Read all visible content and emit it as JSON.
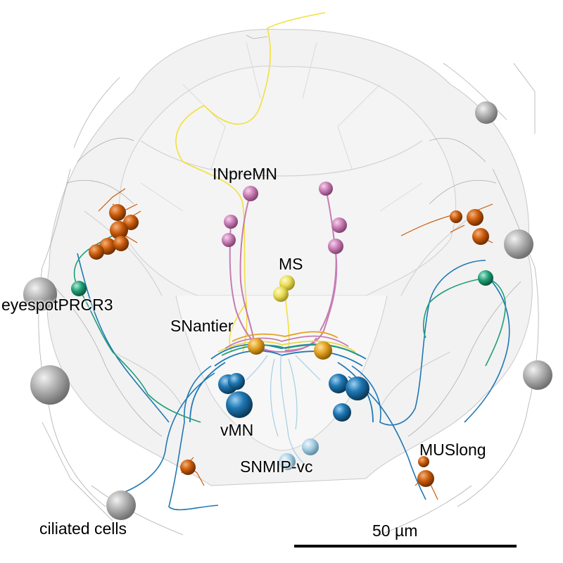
{
  "figure": {
    "labels": {
      "inpremn": "INpreMN",
      "ms": "MS",
      "eyespot": "eyespotPRCR3",
      "snantier": "SNantier",
      "vmn": "vMN",
      "snmip": "SNMIP-vc",
      "muslong": "MUSlong",
      "ciliated": "ciliated cells"
    },
    "scalebar": {
      "label": "50 µm"
    },
    "colors": {
      "outline": "#d8d8d8",
      "ciliated": "#a0a0a0",
      "inpremn": "#c77cb4",
      "ms": "#e6d84a",
      "snantier": "#e2a323",
      "vmn": "#1f78b4",
      "snmip": "#a6cee3",
      "eyespot": "#1f9e77",
      "muslong": "#c85a0a",
      "neurite_yellow": "#f2e03c"
    }
  }
}
